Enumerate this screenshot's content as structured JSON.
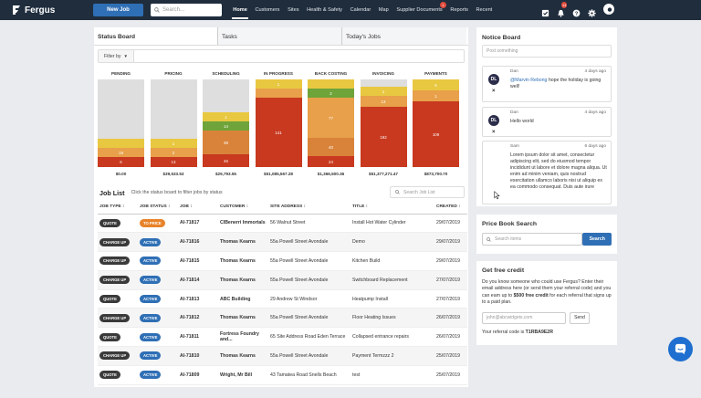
{
  "topbar": {
    "logo_text": "Fergus",
    "new_job_label": "New Job",
    "search_placeholder": "Search...",
    "nav": [
      {
        "label": "Home",
        "active": true
      },
      {
        "label": "Customers"
      },
      {
        "label": "Sites"
      },
      {
        "label": "Health & Safety"
      },
      {
        "label": "Calendar"
      },
      {
        "label": "Map"
      },
      {
        "label": "Supplier Documents",
        "badge": "1"
      },
      {
        "label": "Reports"
      },
      {
        "label": "Recent"
      }
    ],
    "icons": [
      "checkbox-icon",
      "bell-icon",
      "help-icon",
      "gear-icon",
      "user-avatar"
    ],
    "bell_badge": "14"
  },
  "tabs": [
    "Status Board",
    "Tasks",
    "Today's Jobs"
  ],
  "filter_label": "Filter by",
  "status_board": {
    "columns": [
      {
        "title": "PENDING",
        "total": "$0.00",
        "segments": [
          {
            "label": "6",
            "color": "#c8391f",
            "h": 11
          },
          {
            "label": "19",
            "color": "#e8a04a",
            "h": 10
          },
          {
            "label": "",
            "color": "#e8c841",
            "h": 10
          }
        ]
      },
      {
        "title": "PRICING",
        "total": "$39,533.53",
        "segments": [
          {
            "label": "13",
            "color": "#c8391f",
            "h": 11
          },
          {
            "label": "2",
            "color": "#e8a04a",
            "h": 10
          },
          {
            "label": "1",
            "color": "#e8c841",
            "h": 10
          }
        ]
      },
      {
        "title": "SCHEDULING",
        "total": "$29,793.55",
        "segments": [
          {
            "label": "46",
            "color": "#c8391f",
            "h": 14
          },
          {
            "label": "38",
            "color": "#d9833a",
            "h": 26
          },
          {
            "label": "14",
            "color": "#6fa43a",
            "h": 10
          },
          {
            "label": "1",
            "color": "#e8c841",
            "h": 10
          }
        ]
      },
      {
        "title": "IN PROGRESS",
        "total": "$51,085,567.28",
        "segments": [
          {
            "label": "141",
            "color": "#c8391f",
            "h": 76
          },
          {
            "label": "",
            "color": "#e8a04a",
            "h": 10
          },
          {
            "label": "1",
            "color": "#e8c841",
            "h": 10
          }
        ]
      },
      {
        "title": "BACK COSTING",
        "total": "$1,366,500.36",
        "segments": [
          {
            "label": "24",
            "color": "#c8391f",
            "h": 12
          },
          {
            "label": "40",
            "color": "#d9833a",
            "h": 20
          },
          {
            "label": "77",
            "color": "#e8a04a",
            "h": 44
          },
          {
            "label": "2",
            "color": "#6fa43a",
            "h": 10
          },
          {
            "label": "",
            "color": "#e8c841",
            "h": 10
          }
        ]
      },
      {
        "title": "INVOICING",
        "total": "$51,377,271.47",
        "segments": [
          {
            "label": "192",
            "color": "#c8391f",
            "h": 66
          },
          {
            "label": "13",
            "color": "#e8a04a",
            "h": 12
          },
          {
            "label": "1",
            "color": "#e8c841",
            "h": 10
          }
        ]
      },
      {
        "title": "PAYMENTS",
        "total": "$873,700.70",
        "segments": [
          {
            "label": "109",
            "color": "#c8391f",
            "h": 72
          },
          {
            "label": "1",
            "color": "#e8a04a",
            "h": 12
          },
          {
            "label": "5",
            "color": "#e8c841",
            "h": 12
          }
        ]
      }
    ]
  },
  "job_list": {
    "title": "Job List",
    "subtitle": "Click the status board to filter jobs by status",
    "search_placeholder": "Search Job List",
    "headers": [
      "JOB TYPE ↕",
      "JOB STATUS ↕",
      "JOB ↕",
      "CUSTOMER ↕",
      "SITE ADDRESS ↕",
      "TITLE ↕",
      "CREATED ↕"
    ],
    "rows": [
      {
        "type": "QUOTE",
        "status": "TO PRICE",
        "status_color": "#e8832a",
        "job": "AI-71817",
        "customer": "CIBenerri Immortals",
        "address": "56 Walnut Street",
        "title": "Install Hot Water Cylinder",
        "created": "29/07/2019"
      },
      {
        "type": "CHARGE UP",
        "status": "ACTIVE",
        "status_color": "#2f6fb5",
        "job": "AI-71816",
        "customer": "Thomas Kearns",
        "address": "55a Powell Street Avondale",
        "title": "Demo",
        "created": "29/07/2019"
      },
      {
        "type": "CHARGE UP",
        "status": "ACTIVE",
        "status_color": "#2f6fb5",
        "job": "AI-71815",
        "customer": "Thomas Kearns",
        "address": "55a Powell Street Avondale",
        "title": "Kitchen Build",
        "created": "29/07/2019"
      },
      {
        "type": "CHARGE UP",
        "status": "ACTIVE",
        "status_color": "#2f6fb5",
        "job": "AI-71814",
        "customer": "Thomas Kearns",
        "address": "55a Powell Street Avondale",
        "title": "Switchboard Replacement",
        "created": "27/07/2019"
      },
      {
        "type": "QUOTE",
        "status": "ACTIVE",
        "status_color": "#2f6fb5",
        "job": "AI-71813",
        "customer": "ABC Building",
        "address": "29 Andrew St Windsor",
        "title": "Heatpump Install",
        "created": "27/07/2019"
      },
      {
        "type": "CHARGE UP",
        "status": "ACTIVE",
        "status_color": "#2f6fb5",
        "job": "AI-71812",
        "customer": "Thomas Kearns",
        "address": "55a Powell Street Avondale",
        "title": "Floor Heating Issues",
        "created": "26/07/2019"
      },
      {
        "type": "QUOTE",
        "status": "ACTIVE",
        "status_color": "#2f6fb5",
        "job": "AI-71811",
        "customer": "Fortress Foundry and...",
        "address": "65 Site Address Road Eden Terrace",
        "title": "Collapsed entrance repairs",
        "created": "26/07/2019"
      },
      {
        "type": "CHARGE UP",
        "status": "ACTIVE",
        "status_color": "#2f6fb5",
        "job": "AI-71810",
        "customer": "Thomas Kearns",
        "address": "55a Powell Street Avondale",
        "title": "Payment Termzzz 2",
        "created": "25/07/2019"
      },
      {
        "type": "QUOTE",
        "status": "ACTIVE",
        "status_color": "#2f6fb5",
        "job": "AI-71809",
        "customer": "Wright, Mr Bill",
        "address": "43 Tamatea Road Snells Beach",
        "title": "test",
        "created": "25/07/2019"
      }
    ]
  },
  "notice_board": {
    "title": "Notice Board",
    "placeholder": "Post something",
    "notes": [
      {
        "initials": "DL",
        "author": "Dan",
        "time": "4 days ago",
        "mention": "@Marvin Rebong",
        "body": " hope the holiday is going well!"
      },
      {
        "initials": "DL",
        "author": "Dan",
        "time": "4 days ago",
        "mention": "",
        "body": "Hello world"
      },
      {
        "initials": "",
        "author": "Sam",
        "time": "6 days ago",
        "mention": "",
        "body": "Lorem ipsum dolor sit amet, consectetur adipiscing elit, sed do eiusmod tempor incididunt ut labore et dolore magna aliqua. Ut enim ad minim veniam, quis nostrud exercitation ullamco laboris nisi ut aliquip ex ea commodo consequat. Duis aute irure"
      }
    ]
  },
  "price_book": {
    "title": "Price Book Search",
    "placeholder": "Search items",
    "button": "Search"
  },
  "free_credit": {
    "title": "Get free credit",
    "body_1": "Do you know someone who could use Fergus? Enter their email address here (or send them your referral code) and you can earn up to ",
    "body_bold": "$500 free credit",
    "body_2": " for each referral that signs up to a paid plan.",
    "email_placeholder": "john@abcwidgets.com",
    "send_label": "Send",
    "code_label": "Your referral code is ",
    "code_value": "T1RBA9E2R"
  },
  "colors": {
    "topbar": "#1f2d3d",
    "primary": "#2f6fb5",
    "red": "#c8391f",
    "orange": "#e8a04a",
    "green": "#6fa43a",
    "yellow": "#e8c841"
  }
}
